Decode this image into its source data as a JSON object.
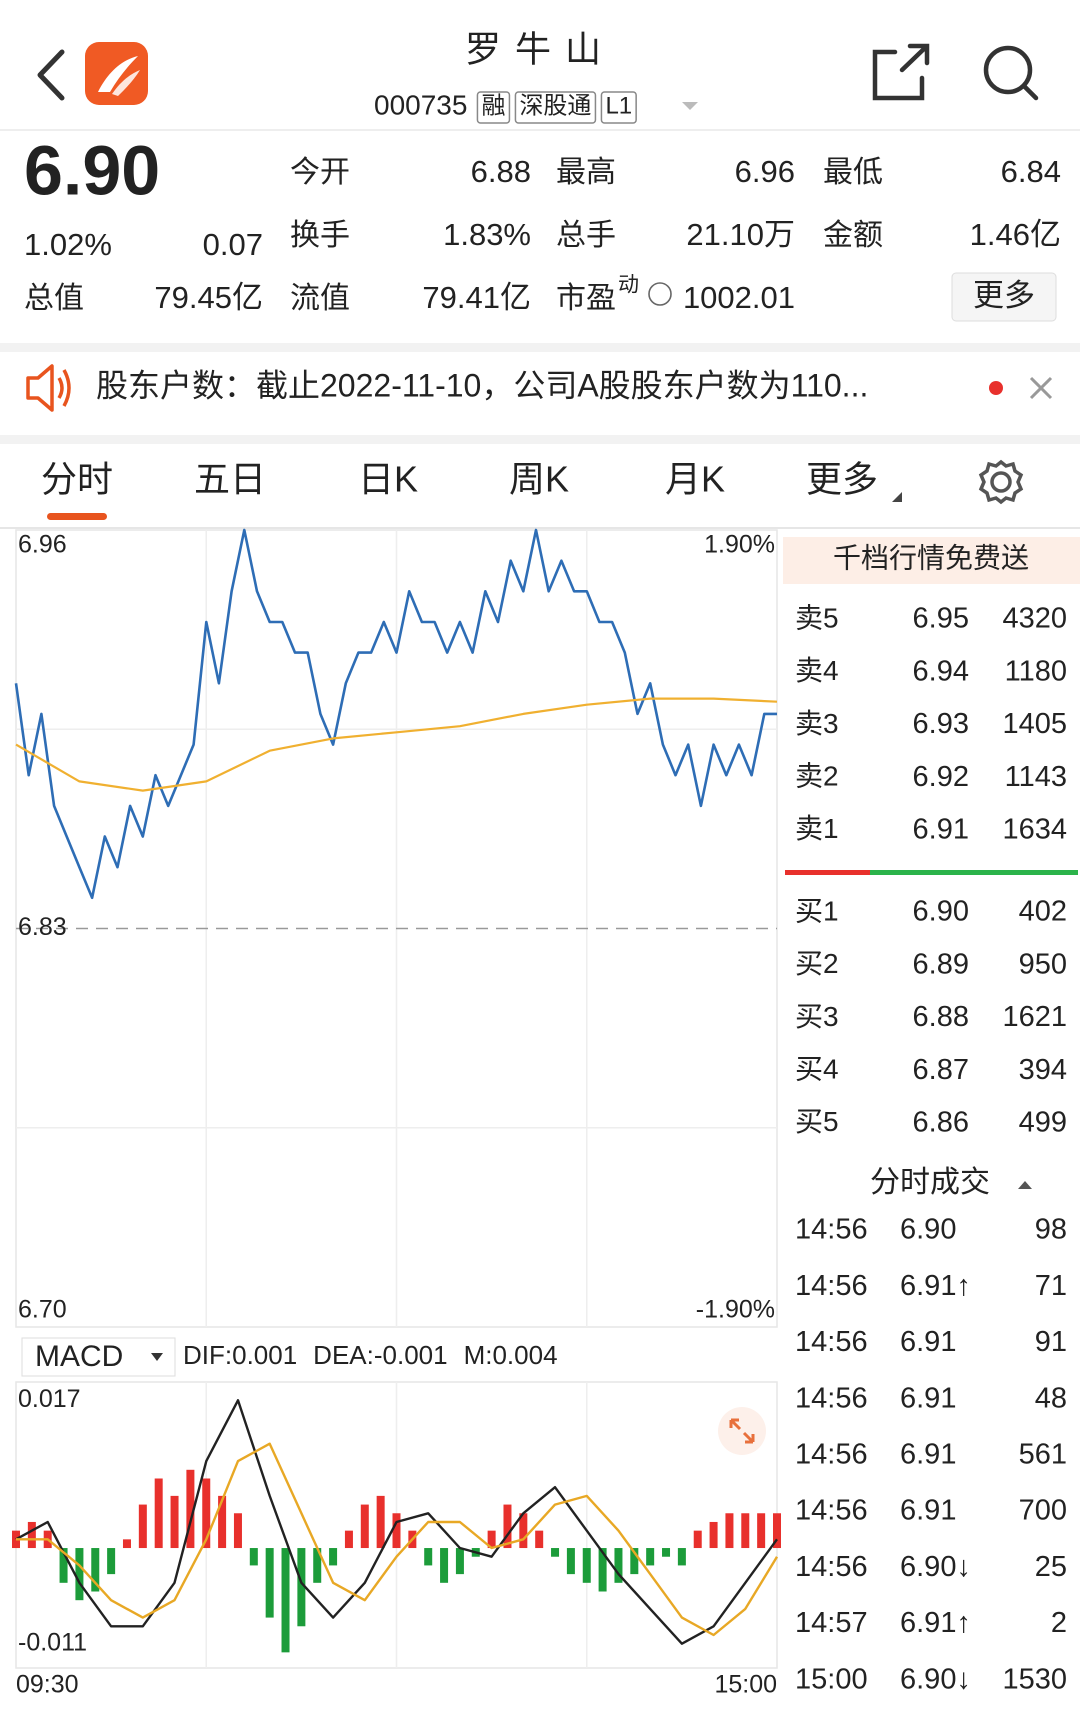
{
  "header": {
    "title": "罗牛山",
    "code": "000735",
    "tags": [
      "融",
      "深股通",
      "L1"
    ]
  },
  "quote": {
    "price": "6.90",
    "change_pct": "1.02%",
    "change": "0.07",
    "color": "#e8302c",
    "more": "更多",
    "fields": [
      {
        "label": "今开",
        "value": "6.88",
        "color": "#e8302c"
      },
      {
        "label": "最高",
        "value": "6.96",
        "color": "#e8302c"
      },
      {
        "label": "最低",
        "value": "6.84",
        "color": "#e8302c"
      },
      {
        "label": "换手",
        "value": "1.83%",
        "color": "#222222"
      },
      {
        "label": "总手",
        "value": "21.10万",
        "color": "#222222"
      },
      {
        "label": "金额",
        "value": "1.46亿",
        "color": "#222222"
      },
      {
        "label": "总值",
        "value": "79.45亿",
        "color": "#222222"
      },
      {
        "label": "流值",
        "value": "79.41亿",
        "color": "#222222"
      },
      {
        "label": "市盈",
        "sup": "动",
        "value": "1002.01",
        "color": "#222222"
      }
    ]
  },
  "notice": {
    "text": "股东户数：截止2022-11-10，公司A股股东户数为110..."
  },
  "tabs": {
    "items": [
      "分时",
      "五日",
      "日K",
      "周K",
      "月K",
      "更多"
    ],
    "active": 0
  },
  "chart_data": [
    {
      "type": "line",
      "xlim": [
        0,
        240
      ],
      "ylim": [
        6.7,
        6.96
      ],
      "yticks": [
        6.96,
        6.83,
        {
          "value": 6.7,
          "label": "6.70"
        }
      ],
      "yticks_colors": [
        "#e8302c",
        "#666666",
        "#1a9a3a"
      ],
      "y2lim": [
        -1.9,
        1.9
      ],
      "y2ticks": [
        {
          "value": 1.9,
          "label": "1.90%"
        },
        {
          "value": -1.9,
          "label": "-1.90%"
        }
      ],
      "y2ticks_colors": [
        "#e8302c",
        "#1a9a3a"
      ],
      "grid": true,
      "series": [
        {
          "color": "#2e6db5",
          "x": [
            0,
            4,
            8,
            12,
            16,
            20,
            24,
            28,
            32,
            36,
            40,
            44,
            48,
            52,
            56,
            60,
            64,
            68,
            72,
            76,
            80,
            84,
            88,
            92,
            96,
            100,
            104,
            108,
            112,
            116,
            120,
            124,
            128,
            132,
            136,
            140,
            144,
            148,
            152,
            156,
            160,
            164,
            168,
            172,
            176,
            180,
            184,
            188,
            192,
            196,
            200,
            204,
            208,
            212,
            216,
            220,
            224,
            228,
            232,
            236,
            240
          ],
          "values": [
            6.91,
            6.88,
            6.9,
            6.87,
            6.86,
            6.85,
            6.84,
            6.86,
            6.85,
            6.87,
            6.86,
            6.88,
            6.87,
            6.88,
            6.89,
            6.93,
            6.91,
            6.94,
            6.96,
            6.94,
            6.93,
            6.93,
            6.92,
            6.92,
            6.9,
            6.89,
            6.91,
            6.92,
            6.92,
            6.93,
            6.92,
            6.94,
            6.93,
            6.93,
            6.92,
            6.93,
            6.92,
            6.94,
            6.93,
            6.95,
            6.94,
            6.96,
            6.94,
            6.95,
            6.94,
            6.94,
            6.93,
            6.93,
            6.92,
            6.9,
            6.91,
            6.89,
            6.88,
            6.89,
            6.87,
            6.89,
            6.88,
            6.89,
            6.88,
            6.9,
            6.9
          ]
        },
        {
          "color": "#f0b030",
          "x": [
            0,
            20,
            40,
            60,
            80,
            100,
            120,
            140,
            160,
            180,
            200,
            220,
            240
          ],
          "values": [
            6.89,
            6.878,
            6.875,
            6.878,
            6.888,
            6.892,
            6.894,
            6.896,
            6.9,
            6.903,
            6.905,
            6.905,
            6.904
          ]
        }
      ]
    },
    {
      "type": "macd",
      "title": "MACD",
      "xlim": [
        0,
        240
      ],
      "xticks": [
        {
          "value": 0,
          "label": "09:30"
        },
        {
          "value": 240,
          "label": "15:00"
        }
      ],
      "ylim": [
        -0.0138,
        0.0191
      ],
      "yticks": [
        0.017,
        -0.011
      ],
      "grid": true,
      "series": [
        {
          "name": "DIF:0.001",
          "type": "line",
          "color": "#222222",
          "x": [
            0,
            10,
            20,
            30,
            40,
            50,
            60,
            70,
            80,
            90,
            100,
            110,
            120,
            130,
            140,
            150,
            160,
            170,
            180,
            190,
            200,
            210,
            220,
            230,
            240
          ],
          "values": [
            0.001,
            0.003,
            -0.004,
            -0.009,
            -0.009,
            -0.004,
            0.01,
            0.017,
            0.006,
            -0.004,
            -0.008,
            -0.004,
            0.003,
            0.004,
            0,
            -0.001,
            0.004,
            0.007,
            0.002,
            -0.003,
            -0.007,
            -0.011,
            -0.009,
            -0.004,
            0.001
          ]
        },
        {
          "name": "DEA:-0.001",
          "type": "line",
          "color": "#e8a825",
          "x": [
            0,
            10,
            20,
            30,
            40,
            50,
            60,
            70,
            80,
            90,
            100,
            110,
            120,
            130,
            140,
            150,
            160,
            170,
            180,
            190,
            200,
            210,
            220,
            230,
            240
          ],
          "values": [
            0.001,
            0.001,
            -0.002,
            -0.006,
            -0.008,
            -0.006,
            0.001,
            0.01,
            0.012,
            0.004,
            -0.004,
            -0.006,
            -0.001,
            0.003,
            0.003,
            0,
            0.001,
            0.005,
            0.006,
            0.002,
            -0.003,
            -0.008,
            -0.01,
            -0.007,
            -0.001
          ]
        },
        {
          "name": "M:0.004",
          "type": "bar",
          "color": "#e8302c",
          "negative_color": "#1c9c3a",
          "legend_color": "#c43cc4",
          "x": [
            0,
            5,
            10,
            15,
            20,
            25,
            30,
            35,
            40,
            45,
            50,
            55,
            60,
            65,
            70,
            75,
            80,
            85,
            90,
            95,
            100,
            105,
            110,
            115,
            120,
            125,
            130,
            135,
            140,
            145,
            150,
            155,
            160,
            165,
            170,
            175,
            180,
            185,
            190,
            195,
            200,
            205,
            210,
            215,
            220,
            225,
            230,
            235,
            240
          ],
          "values": [
            0.002,
            0.003,
            0.002,
            -0.004,
            -0.006,
            -0.005,
            -0.003,
            0.001,
            0.005,
            0.008,
            0.006,
            0.009,
            0.008,
            0.006,
            0.004,
            -0.002,
            -0.008,
            -0.012,
            -0.009,
            -0.004,
            -0.002,
            0.002,
            0.005,
            0.006,
            0.004,
            0.002,
            -0.002,
            -0.004,
            -0.003,
            -0.001,
            0.002,
            0.005,
            0.004,
            0.002,
            -0.001,
            -0.003,
            -0.004,
            -0.005,
            -0.004,
            -0.003,
            -0.002,
            -0.001,
            -0.002,
            0.002,
            0.003,
            0.004,
            0.004,
            0.004,
            0.004
          ]
        }
      ]
    }
  ],
  "order_book": {
    "banner": "千档行情免费送",
    "price_color": "#e8302c",
    "sell": [
      {
        "label": "卖5",
        "price": "6.95",
        "volume": "4320"
      },
      {
        "label": "卖4",
        "price": "6.94",
        "volume": "1180"
      },
      {
        "label": "卖3",
        "price": "6.93",
        "volume": "1405"
      },
      {
        "label": "卖2",
        "price": "6.92",
        "volume": "1143"
      },
      {
        "label": "卖1",
        "price": "6.91",
        "volume": "1634"
      }
    ],
    "buy": [
      {
        "label": "买1",
        "price": "6.90",
        "volume": "402"
      },
      {
        "label": "买2",
        "price": "6.89",
        "volume": "950"
      },
      {
        "label": "买3",
        "price": "6.88",
        "volume": "1621"
      },
      {
        "label": "买4",
        "price": "6.87",
        "volume": "394"
      },
      {
        "label": "买5",
        "price": "6.86",
        "volume": "499"
      }
    ]
  },
  "trades": {
    "title": "分时成交",
    "price_color": "#e8302c",
    "rows": [
      {
        "time": "14:56",
        "price": "6.90",
        "volume": "98",
        "volume_color": "#1a9a3a"
      },
      {
        "time": "14:56",
        "price": "6.91↑",
        "volume": "71",
        "volume_color": "#e8302c"
      },
      {
        "time": "14:56",
        "price": "6.91",
        "volume": "91",
        "volume_color": "#e8302c"
      },
      {
        "time": "14:56",
        "price": "6.91",
        "volume": "48",
        "volume_color": "#e8302c"
      },
      {
        "time": "14:56",
        "price": "6.91",
        "volume": "561",
        "volume_color": "#e8302c"
      },
      {
        "time": "14:56",
        "price": "6.91",
        "volume": "700",
        "volume_color": "#e8302c"
      },
      {
        "time": "14:56",
        "price": "6.90↓",
        "volume": "25",
        "volume_color": "#1a9a3a"
      },
      {
        "time": "14:57",
        "price": "6.91↑",
        "volume": "2",
        "volume_color": "#e8302c"
      },
      {
        "time": "15:00",
        "price": "6.90↓",
        "volume": "1530",
        "volume_color": "#1a9a3a"
      }
    ]
  }
}
